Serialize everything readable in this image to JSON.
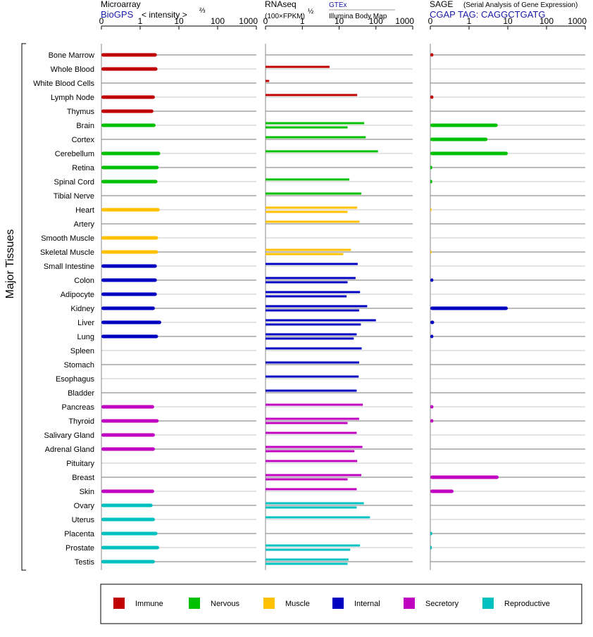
{
  "chart_data": {
    "type": "bar",
    "y_axis_label": "Major Tissues",
    "tissues": [
      "Bone Marrow",
      "Whole Blood",
      "White Blood Cells",
      "Lymph Node",
      "Thymus",
      "Brain",
      "Cortex",
      "Cerebellum",
      "Retina",
      "Spinal Cord",
      "Tibial Nerve",
      "Heart",
      "Artery",
      "Smooth Muscle",
      "Skeletal Muscle",
      "Small Intestine",
      "Colon",
      "Adipocyte",
      "Kidney",
      "Liver",
      "Lung",
      "Spleen",
      "Stomach",
      "Esophagus",
      "Bladder",
      "Pancreas",
      "Thyroid",
      "Salivary Gland",
      "Adrenal Gland",
      "Pituitary",
      "Breast",
      "Skin",
      "Ovary",
      "Uterus",
      "Placenta",
      "Prostate",
      "Testis"
    ],
    "groups": [
      "Immune",
      "Immune",
      "Immune",
      "Immune",
      "Immune",
      "Nervous",
      "Nervous",
      "Nervous",
      "Nervous",
      "Nervous",
      "Nervous",
      "Muscle",
      "Muscle",
      "Muscle",
      "Muscle",
      "Internal",
      "Internal",
      "Internal",
      "Internal",
      "Internal",
      "Internal",
      "Internal",
      "Internal",
      "Internal",
      "Internal",
      "Secretory",
      "Secretory",
      "Secretory",
      "Secretory",
      "Secretory",
      "Secretory",
      "Secretory",
      "Reproductive",
      "Reproductive",
      "Reproductive",
      "Reproductive",
      "Reproductive"
    ],
    "ticks": [
      0,
      1,
      10,
      100,
      1000
    ],
    "panels": [
      {
        "name": "Microarray",
        "subtitle": "BioGPS",
        "unit_prefix": "< intensity >",
        "unit_exp": "⅔",
        "note": "",
        "note2": "",
        "series": [
          {
            "values": [
              2.7,
              2.8,
              null,
              2.4,
              2.2,
              2.5,
              null,
              3.3,
              3.0,
              2.8,
              null,
              3.2,
              null,
              2.9,
              2.9,
              2.7,
              2.7,
              2.7,
              2.4,
              3.5,
              2.9,
              null,
              null,
              null,
              null,
              2.3,
              3.0,
              2.4,
              2.4,
              null,
              null,
              2.3,
              2.1,
              2.4,
              2.8,
              3.1,
              2.4
            ]
          }
        ]
      },
      {
        "name": "RNAseq",
        "subtitle": "",
        "unit_prefix": "(100×FPKM)",
        "unit_exp": "½",
        "note": "GTEx",
        "note2": "Illumina Body Map",
        "series": [
          {
            "values": [
              null,
              5.5,
              null,
              null,
              null,
              null,
              null,
              null,
              null,
              null,
              null,
              null,
              null,
              null,
              null,
              null,
              null,
              null,
              null,
              null,
              null,
              null,
              null,
              null,
              null,
              null,
              null,
              null,
              null,
              null,
              null,
              null,
              null,
              null,
              null,
              null,
              null
            ]
          },
          {
            "values": [
              null,
              null,
              0.1,
              31,
              null,
              48,
              53,
              114,
              null,
              19,
              40,
              31,
              36,
              null,
              21,
              32,
              28,
              37,
              58,
              100,
              30,
              41,
              35,
              34,
              30,
              44,
              35,
              30,
              43,
              31,
              40,
              30,
              47,
              69,
              null,
              37,
              18
            ]
          },
          {
            "values": [
              null,
              null,
              null,
              null,
              null,
              17,
              null,
              null,
              null,
              null,
              null,
              17,
              null,
              null,
              13,
              null,
              17,
              16,
              35,
              39,
              25,
              null,
              null,
              null,
              null,
              null,
              17,
              null,
              26,
              null,
              17,
              null,
              30,
              null,
              null,
              20,
              17
            ]
          }
        ]
      },
      {
        "name": "SAGE",
        "subtitle": "CGAP TAG: CAGGCTGATG",
        "unit_prefix": "",
        "unit_exp": "",
        "note": "(Serial Analysis of Gene Expression)",
        "note2": "",
        "series": [
          {
            "values": [
              0.08,
              null,
              null,
              0.08,
              null,
              5.5,
              3.0,
              10,
              0.05,
              0.05,
              null,
              0.03,
              null,
              null,
              0.03,
              null,
              0.08,
              null,
              10,
              0.1,
              0.08,
              null,
              null,
              null,
              null,
              0.08,
              0.08,
              null,
              null,
              null,
              5.8,
              0.6,
              null,
              null,
              0.05,
              0.04,
              null
            ]
          }
        ]
      }
    ]
  },
  "legend": [
    {
      "label": "Immune",
      "color": "#c00000"
    },
    {
      "label": "Nervous",
      "color": "#00c000"
    },
    {
      "label": "Muscle",
      "color": "#ffc000"
    },
    {
      "label": "Internal",
      "color": "#0000c0"
    },
    {
      "label": "Secretory",
      "color": "#c000c0"
    },
    {
      "label": "Reproductive",
      "color": "#00c0c0"
    }
  ]
}
